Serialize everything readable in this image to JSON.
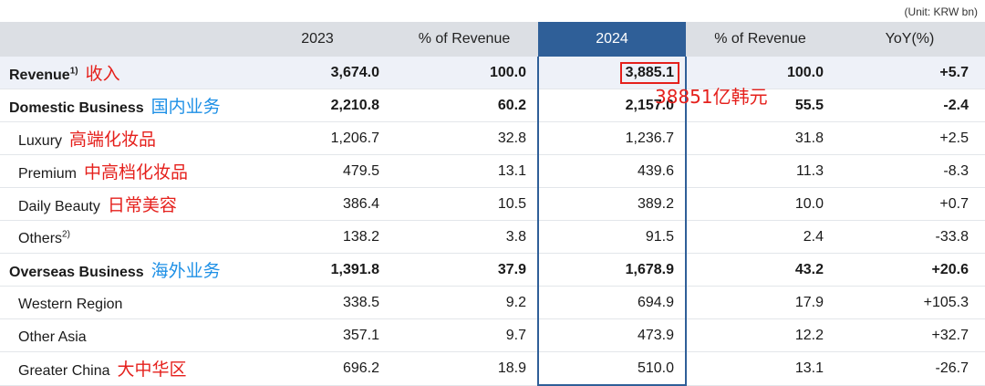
{
  "unit": "(Unit: KRW bn)",
  "header": [
    "",
    "2023",
    "% of Revenue",
    "2024",
    "% of Revenue",
    "YoY(%)"
  ],
  "rows": [
    {
      "label": "Revenue",
      "sup": "1)",
      "note": "收入",
      "note_color": "#e5201c",
      "v2023": "3,674.0",
      "p2023": "100.0",
      "v2024": "3,885.1",
      "p2024": "100.0",
      "yoy": "+5.7"
    },
    {
      "label": "Domestic Business",
      "sup": "",
      "note": "国内业务",
      "note_color": "#1e90e6",
      "v2023": "2,210.8",
      "p2023": "60.2",
      "v2024": "2,157.0",
      "p2024": "55.5",
      "yoy": "-2.4"
    },
    {
      "label": "Luxury",
      "sup": "",
      "note": "高端化妆品",
      "note_color": "#e5201c",
      "v2023": "1,206.7",
      "p2023": "32.8",
      "v2024": "1,236.7",
      "p2024": "31.8",
      "yoy": "+2.5"
    },
    {
      "label": "Premium",
      "sup": "",
      "note": "中高档化妆品",
      "note_color": "#e5201c",
      "v2023": "479.5",
      "p2023": "13.1",
      "v2024": "439.6",
      "p2024": "11.3",
      "yoy": "-8.3"
    },
    {
      "label": "Daily Beauty",
      "sup": "",
      "note": "日常美容",
      "note_color": "#e5201c",
      "v2023": "386.4",
      "p2023": "10.5",
      "v2024": "389.2",
      "p2024": "10.0",
      "yoy": "+0.7"
    },
    {
      "label": "Others",
      "sup": "2)",
      "note": "",
      "note_color": "#e5201c",
      "v2023": "138.2",
      "p2023": "3.8",
      "v2024": "91.5",
      "p2024": "2.4",
      "yoy": "-33.8"
    },
    {
      "label": "Overseas Business",
      "sup": "",
      "note": "海外业务",
      "note_color": "#1e90e6",
      "v2023": "1,391.8",
      "p2023": "37.9",
      "v2024": "1,678.9",
      "p2024": "43.2",
      "yoy": "+20.6"
    },
    {
      "label": "Western Region",
      "sup": "",
      "note": "",
      "note_color": "#e5201c",
      "v2023": "338.5",
      "p2023": "9.2",
      "v2024": "694.9",
      "p2024": "17.9",
      "yoy": "+105.3"
    },
    {
      "label": "Other Asia",
      "sup": "",
      "note": "",
      "note_color": "#e5201c",
      "v2023": "357.1",
      "p2023": "9.7",
      "v2024": "473.9",
      "p2024": "12.2",
      "yoy": "+32.7"
    },
    {
      "label": "Greater China",
      "sup": "",
      "note": "大中华区",
      "note_color": "#e5201c",
      "v2023": "696.2",
      "p2023": "18.9",
      "v2024": "510.0",
      "p2024": "13.1",
      "yoy": "-26.7"
    }
  ],
  "revenue_note_2024": "38851亿韩元",
  "colors": {
    "highlight_column": "#2f5f98",
    "header_bg": "#dcdfe4",
    "annotation_red": "#e5201c",
    "annotation_blue": "#1e90e6"
  }
}
